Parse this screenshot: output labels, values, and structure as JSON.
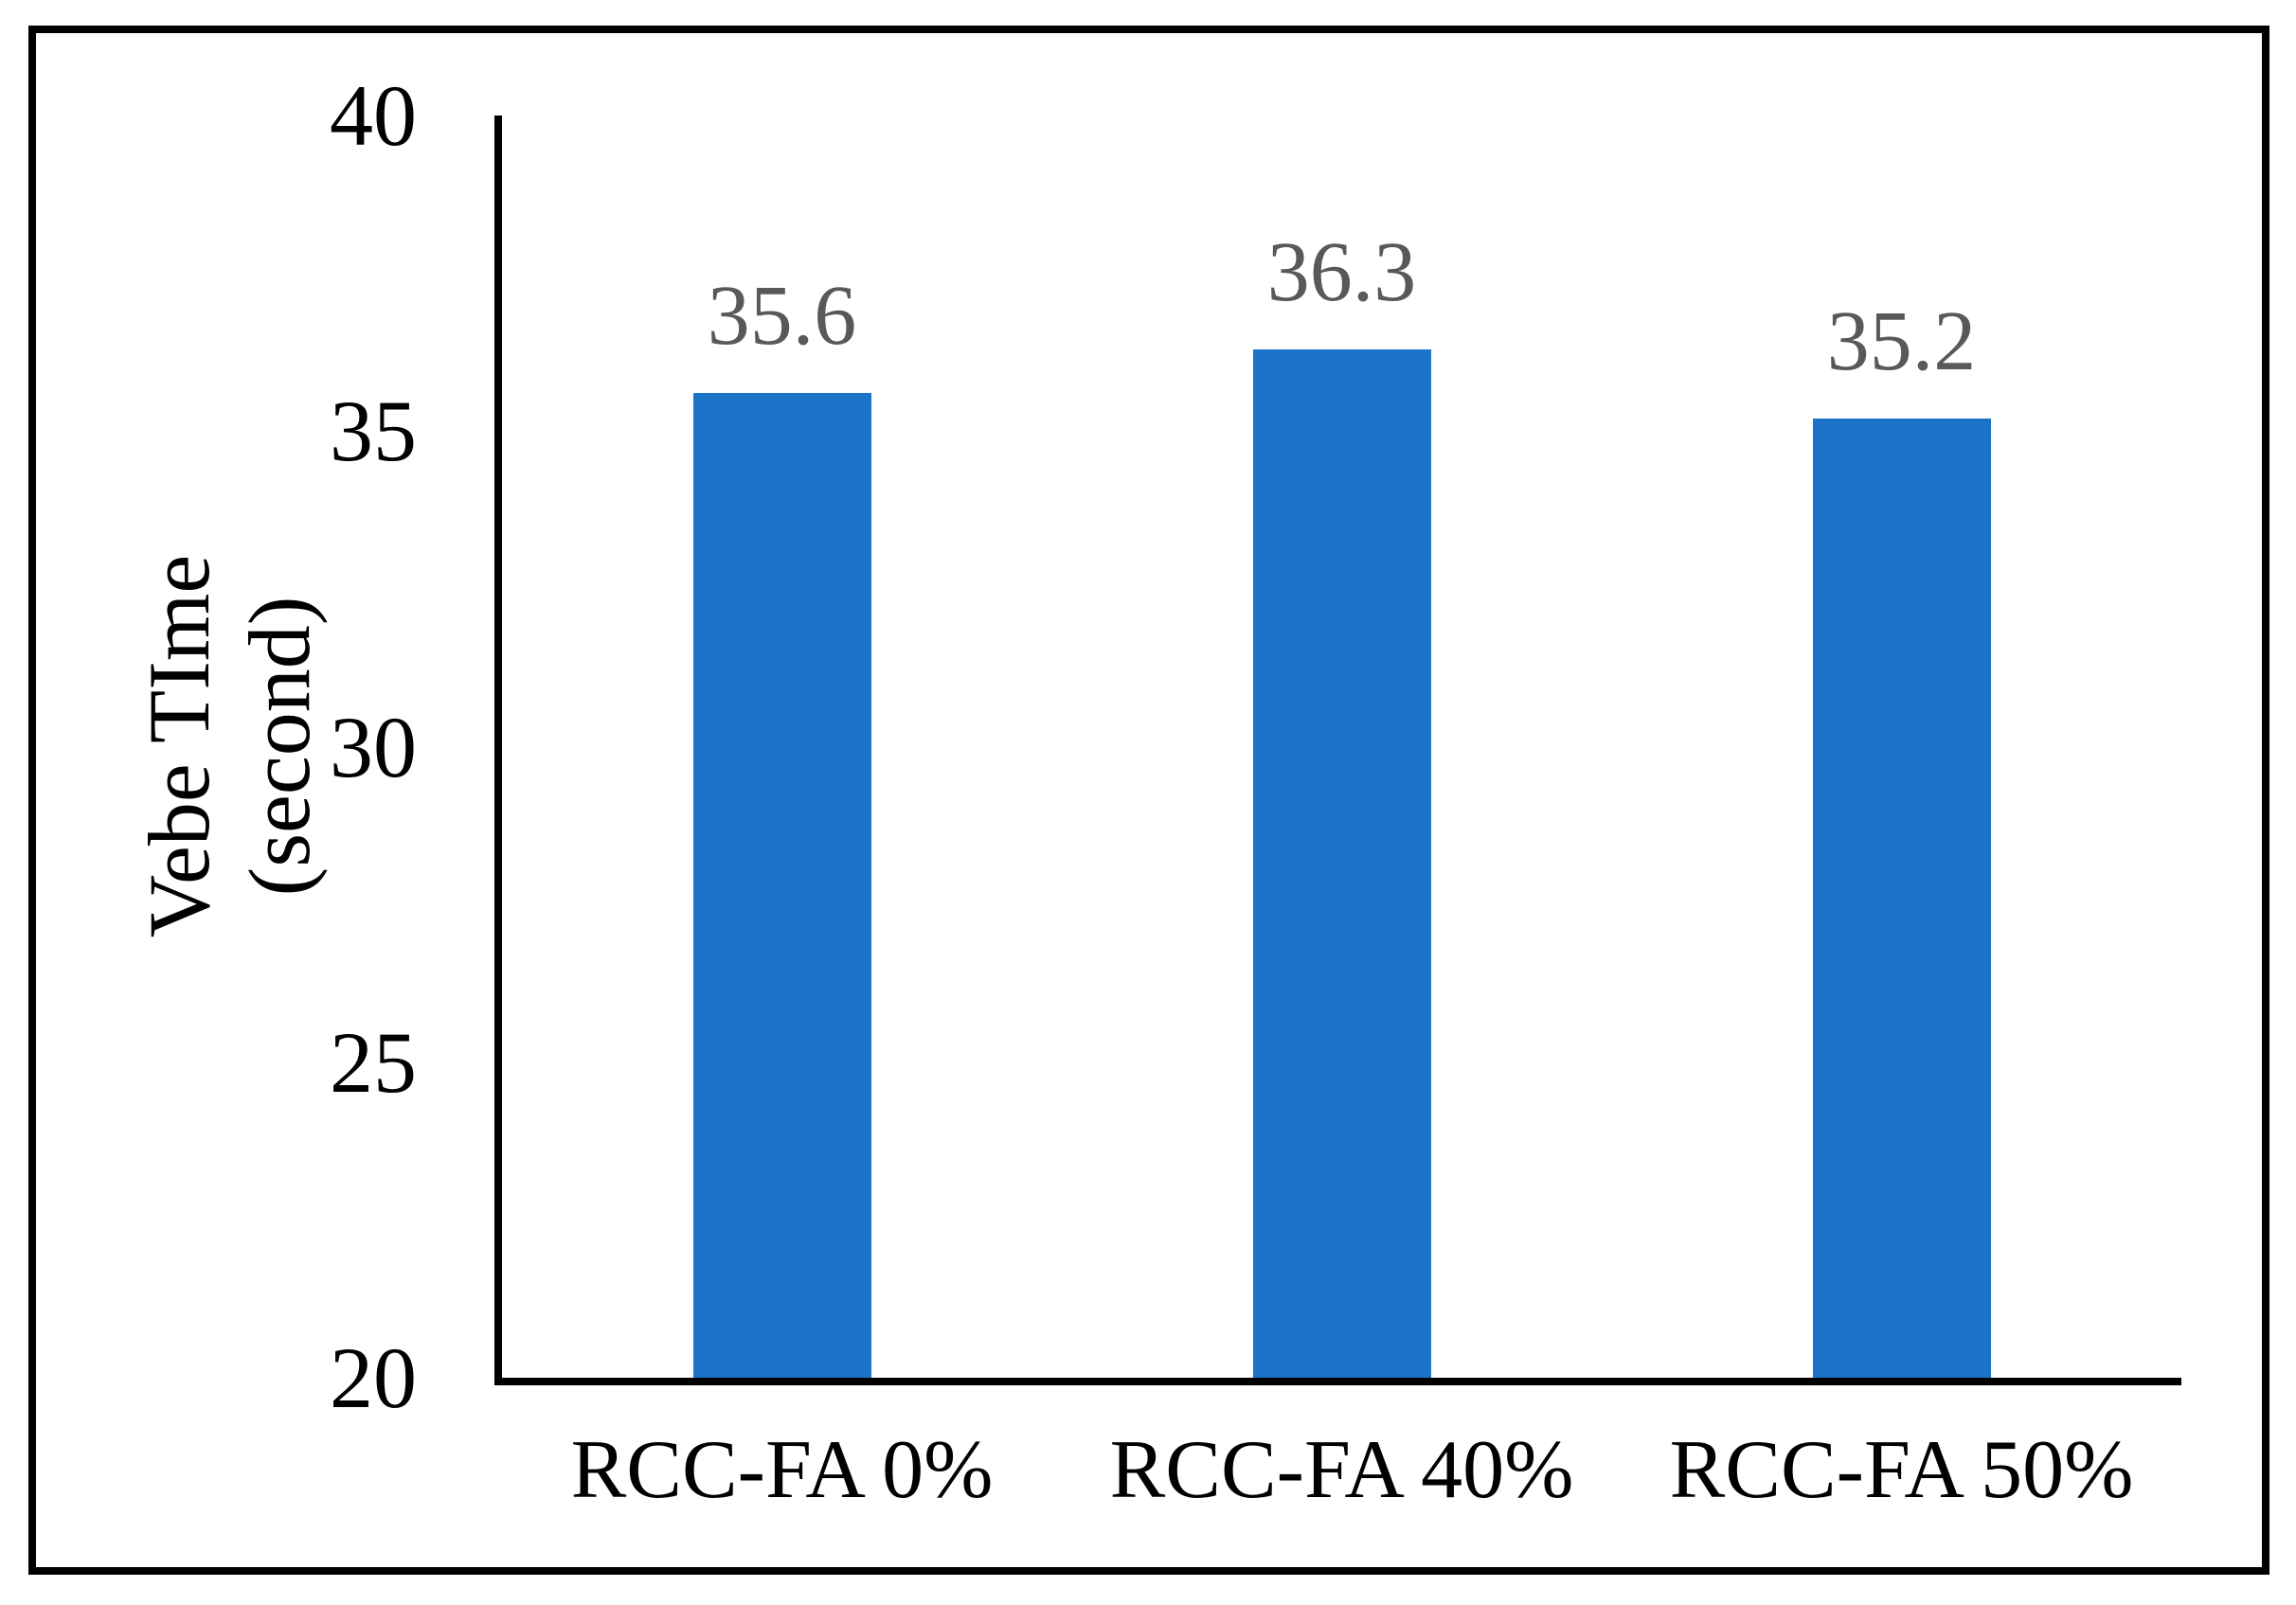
{
  "chart_data": {
    "type": "bar",
    "categories": [
      "RCC-FA 0%",
      "RCC-FA 40%",
      "RCC-FA 50%"
    ],
    "values": [
      35.6,
      36.3,
      35.2
    ],
    "value_labels": [
      "35.6",
      "36.3",
      "35.2"
    ],
    "title": "",
    "xlabel": "",
    "ylabel_line1": "Vebe TIme",
    "ylabel_line2": "(second)",
    "yticks": [
      20,
      25,
      30,
      35,
      40
    ],
    "ylim": [
      20,
      40
    ],
    "grid": false,
    "legend": "none",
    "bar_color": "#1b74c8",
    "value_label_color": "#595959",
    "axis_color": "#000000",
    "border_color": "#000000"
  }
}
